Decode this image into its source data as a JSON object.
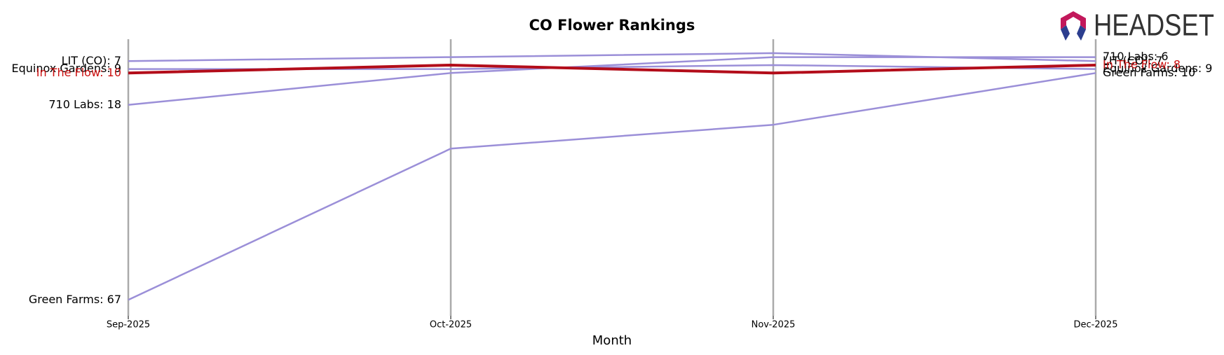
{
  "chart_data": {
    "type": "bump",
    "title": "CO Flower Rankings",
    "xlabel": "Month",
    "logo": "HEADSET",
    "categories": [
      "Sep-2025",
      "Oct-2025",
      "Nov-2025",
      "Dec-2025"
    ],
    "ylim": [
      71,
      1.5
    ],
    "series": [
      {
        "name": "LIT (CO)",
        "color": "#9b8fd8",
        "linewidth": 2.5,
        "label_color": "#000000",
        "values": [
          7,
          6,
          5,
          7
        ],
        "value_labels": [
          "LIT (CO): 7",
          null,
          null,
          "LIT (CO): 7"
        ]
      },
      {
        "name": "Equinox Gardens",
        "color": "#9b8fd8",
        "linewidth": 2.5,
        "label_color": "#000000",
        "values": [
          9,
          9,
          8,
          9
        ],
        "value_labels": [
          "Equinox Gardens: 9",
          null,
          null,
          "Equinox Gardens: 9"
        ]
      },
      {
        "name": "710 Labs",
        "color": "#9b8fd8",
        "linewidth": 2.5,
        "label_color": "#000000",
        "values": [
          18,
          10,
          6,
          6
        ],
        "value_labels": [
          "710 Labs: 18",
          null,
          null,
          "710 Labs: 6"
        ]
      },
      {
        "name": "Green Farms",
        "color": "#9b8fd8",
        "linewidth": 2.5,
        "label_color": "#000000",
        "values": [
          67,
          29,
          23,
          10
        ],
        "value_labels": [
          "Green Farms: 67",
          null,
          null,
          "Green Farms: 10"
        ]
      },
      {
        "name": "In The Flow",
        "color": "#b30d1a",
        "linewidth": 4,
        "label_color": "#cc1111",
        "values": [
          10,
          8,
          10,
          8
        ],
        "value_labels": [
          "In The Flow: 10",
          null,
          null,
          "In The Flow: 8"
        ]
      }
    ]
  }
}
